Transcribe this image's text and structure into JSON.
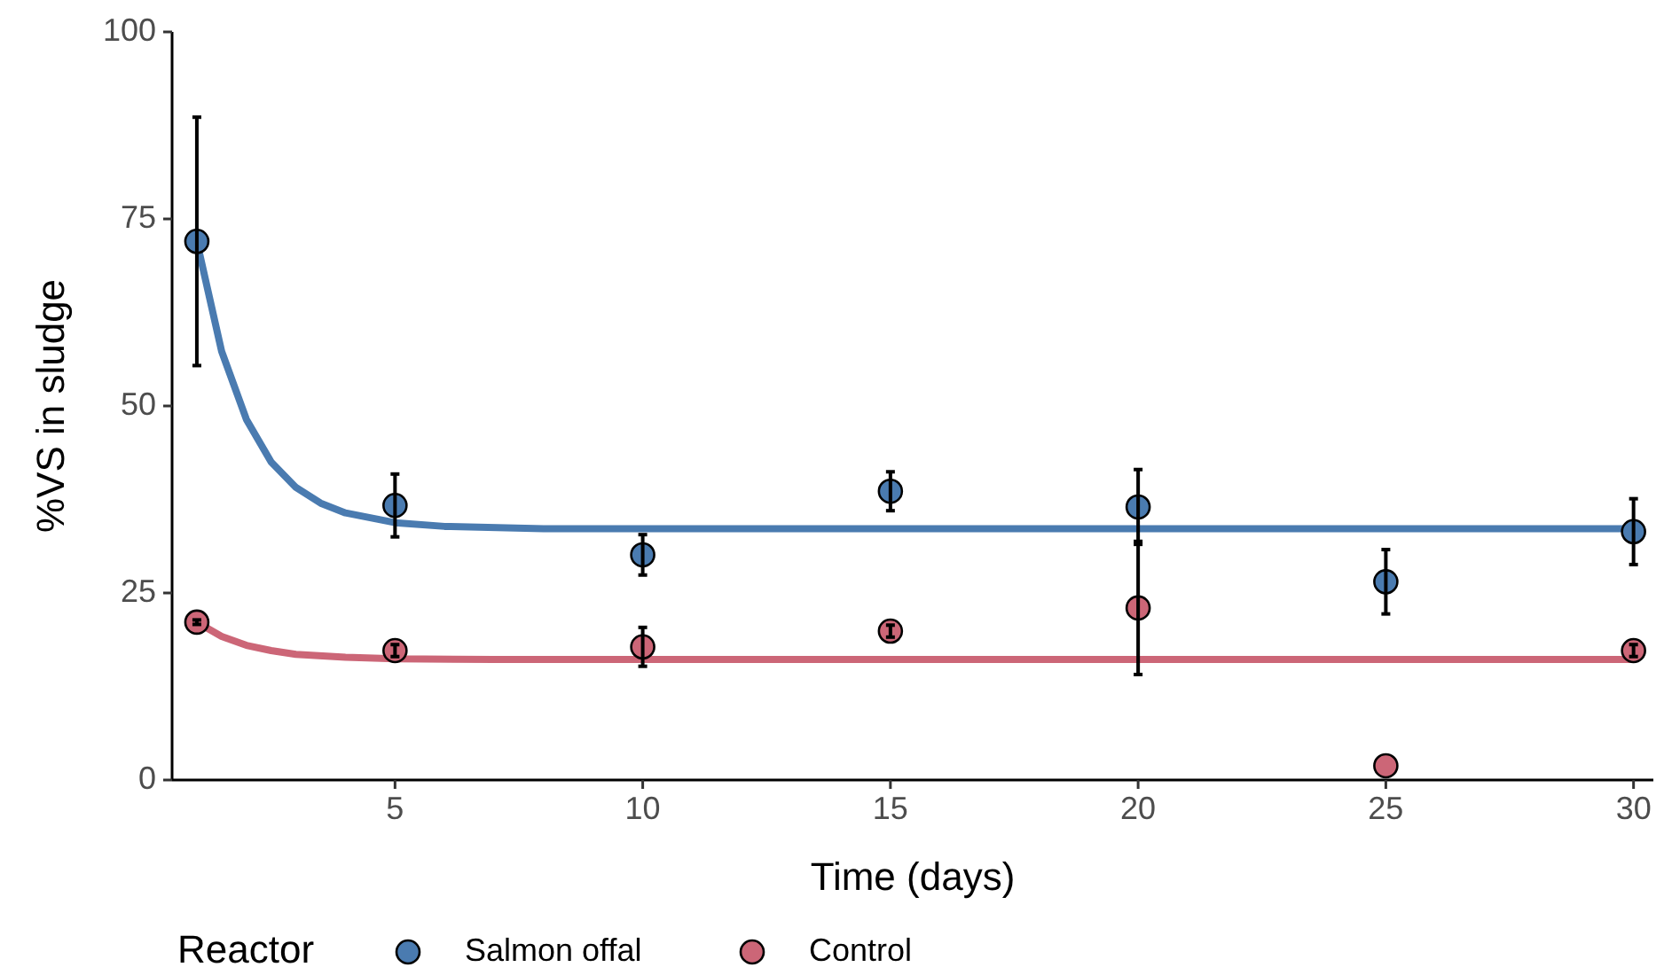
{
  "chart_data": {
    "type": "scatter",
    "xlabel": "Time (days)",
    "ylabel": "%VS in sludge",
    "legend_title": "Reactor",
    "legend": "bottom",
    "grid": false,
    "marker": "circle",
    "xlim": [
      0.5,
      30.4
    ],
    "xticks": [
      5,
      10,
      15,
      20,
      25,
      30
    ],
    "ylim": [
      0,
      100
    ],
    "yticks": [
      0,
      25,
      50,
      75,
      100
    ],
    "series": [
      {
        "type": "line",
        "marker": "none",
        "color": "#4a7bb0",
        "x": [
          1,
          1.5,
          2,
          2.5,
          3,
          3.5,
          4,
          5,
          6,
          8,
          30
        ],
        "values": [
          72,
          57.3,
          48.2,
          42.5,
          39.1,
          37,
          35.7,
          34.4,
          33.9,
          33.6,
          33.6
        ]
      },
      {
        "type": "line",
        "marker": "none",
        "color": "#cc6677",
        "x": [
          1,
          1.5,
          2,
          2.5,
          3,
          4,
          5,
          7,
          30
        ],
        "values": [
          21.1,
          19.2,
          18,
          17.3,
          16.8,
          16.4,
          16.2,
          16.1,
          16.1
        ]
      },
      {
        "name": "Salmon offal",
        "color": "#4a7bb0",
        "x": [
          1,
          5,
          10,
          15,
          20,
          25,
          30
        ],
        "values": [
          72,
          36.7,
          30.1,
          38.6,
          36.5,
          26.5,
          33.2
        ],
        "errors": [
          16.6,
          4.2,
          2.7,
          2.6,
          5,
          4.3,
          4.4
        ]
      },
      {
        "name": "Control",
        "color": "#cc6677",
        "x": [
          1,
          5,
          10,
          15,
          20,
          25,
          30
        ],
        "values": [
          21.1,
          17.3,
          17.8,
          19.9,
          23,
          1.9,
          17.3
        ],
        "errors": [
          0.3,
          0.8,
          2.6,
          0.8,
          8.9,
          null,
          0.8
        ]
      }
    ]
  }
}
